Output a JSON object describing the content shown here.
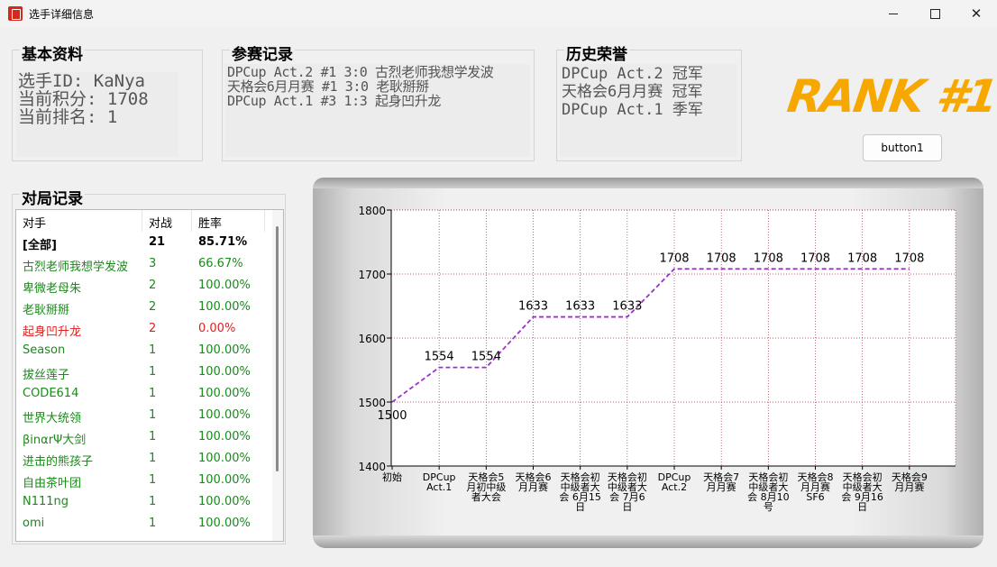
{
  "window": {
    "title": "选手详细信息"
  },
  "basic": {
    "title": "基本资料",
    "lines": [
      "选手ID: KaNya",
      "当前积分: 1708",
      "当前排名: 1"
    ]
  },
  "events": {
    "title": "参赛记录",
    "lines": [
      "DPCup Act.2 #1 3:0 古烈老师我想学发波",
      "天格会6月月赛 #1 3:0 老耿掰掰",
      "DPCup Act.1  #3 1:3 起身凹升龙"
    ]
  },
  "honors": {
    "title": "历史荣誉",
    "lines": [
      "DPCup Act.2 冠军",
      "天格会6月月赛 冠军",
      "DPCup Act.1  季军"
    ]
  },
  "rank_badge": "RANK #1",
  "button1_label": "button1",
  "matches": {
    "title": "对局记录",
    "headers": [
      "对手",
      "对战",
      "胜率"
    ],
    "rows": [
      {
        "opponent": "[全部]",
        "games": "21",
        "rate": "85.71%",
        "color": "#000000",
        "bold": true
      },
      {
        "opponent": "古烈老师我想学发波",
        "games": "3",
        "rate": "66.67%",
        "color": "#1a8a1a"
      },
      {
        "opponent": "卑微老母朱",
        "games": "2",
        "rate": "100.00%",
        "color": "#1a8a1a"
      },
      {
        "opponent": "老耿掰掰",
        "games": "2",
        "rate": "100.00%",
        "color": "#1a8a1a"
      },
      {
        "opponent": "起身凹升龙",
        "games": "2",
        "rate": "0.00%",
        "color": "#e02020"
      },
      {
        "opponent": "Season",
        "games": "1",
        "rate": "100.00%",
        "color": "#1a8a1a"
      },
      {
        "opponent": "拔丝莲子",
        "games": "1",
        "rate": "100.00%",
        "color": "#1a8a1a"
      },
      {
        "opponent": "CODE614",
        "games": "1",
        "rate": "100.00%",
        "color": "#1a8a1a"
      },
      {
        "opponent": "世界大统领",
        "games": "1",
        "rate": "100.00%",
        "color": "#1a8a1a"
      },
      {
        "opponent": "βinαrΨ大剑",
        "games": "1",
        "rate": "100.00%",
        "color": "#1a8a1a"
      },
      {
        "opponent": "进击的熊孩子",
        "games": "1",
        "rate": "100.00%",
        "color": "#1a8a1a"
      },
      {
        "opponent": "自由茶叶团",
        "games": "1",
        "rate": "100.00%",
        "color": "#1a8a1a"
      },
      {
        "opponent": "N111ng",
        "games": "1",
        "rate": "100.00%",
        "color": "#1a8a1a"
      },
      {
        "opponent": "omi",
        "games": "1",
        "rate": "100.00%",
        "color": "#1a8a1a"
      }
    ]
  },
  "chart_data": {
    "type": "line",
    "categories": [
      [
        "初始"
      ],
      [
        "DPCup",
        "Act.1"
      ],
      [
        "天格会5",
        "月初中级",
        "者大会"
      ],
      [
        "天格会6",
        "月月赛"
      ],
      [
        "天格会初",
        "中级者大",
        "会 6月15",
        "日"
      ],
      [
        "天格会初",
        "中级者大",
        "会 7月6",
        "日"
      ],
      [
        "DPCup",
        "Act.2"
      ],
      [
        "天格会7",
        "月月赛"
      ],
      [
        "天格会初",
        "中级者大",
        "会 8月10",
        "号"
      ],
      [
        "天格会8",
        "月月赛",
        "SF6"
      ],
      [
        "天格会初",
        "中级者大",
        "会 9月16",
        "日"
      ],
      [
        "天格会9",
        "月月赛"
      ]
    ],
    "series": [
      {
        "values": [
          1500,
          1554,
          1554,
          1633,
          1633,
          1633,
          1708,
          1708,
          1708,
          1708,
          1708,
          1708
        ],
        "color": "#9933cc"
      }
    ],
    "ylim": [
      1400,
      1800
    ],
    "yticks": [
      1400,
      1500,
      1600,
      1700,
      1800
    ],
    "grid": true
  }
}
